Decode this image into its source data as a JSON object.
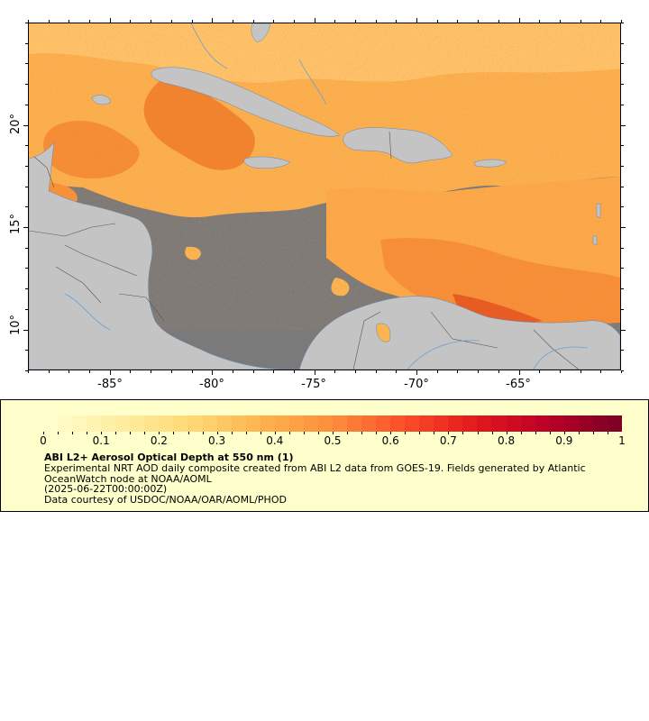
{
  "map": {
    "x_axis": {
      "ticks": [
        "-85°",
        "-80°",
        "-75°",
        "-70°",
        "-65°"
      ],
      "values": [
        -85,
        -80,
        -75,
        -70,
        -65
      ],
      "range": [
        -89,
        -60
      ]
    },
    "y_axis": {
      "ticks": [
        "20°",
        "15°",
        "10°"
      ],
      "values": [
        20,
        15,
        10
      ],
      "range": [
        8,
        25
      ]
    },
    "colors": {
      "no_data": "#7a7a7a",
      "land": "#c4c4c4",
      "rivers": "#6a9ecf",
      "borders": "#666666"
    }
  },
  "colorbar": {
    "labels": [
      "0",
      "0.1",
      "0.2",
      "0.3",
      "0.4",
      "0.5",
      "0.6",
      "0.7",
      "0.8",
      "0.9",
      "1"
    ],
    "min": 0,
    "max": 1,
    "colors": [
      "#ffffcc",
      "#ffeda0",
      "#fed976",
      "#feb24c",
      "#fd8d3c",
      "#fc4e2a",
      "#e31a1c",
      "#bd0026",
      "#800026"
    ]
  },
  "legend": {
    "title": "ABI L2+ Aerosol Optical Depth at 550 nm (1)",
    "line1": "Experimental NRT AOD daily composite created from ABI L2 data from GOES-19. Fields generated by Atlantic",
    "line2": "OceanWatch node at NOAA/AOML",
    "line3": "(2025-06-22T00:00:00Z)",
    "line4": "Data courtesy of USDOC/NOAA/OAR/AOML/PHOD"
  }
}
